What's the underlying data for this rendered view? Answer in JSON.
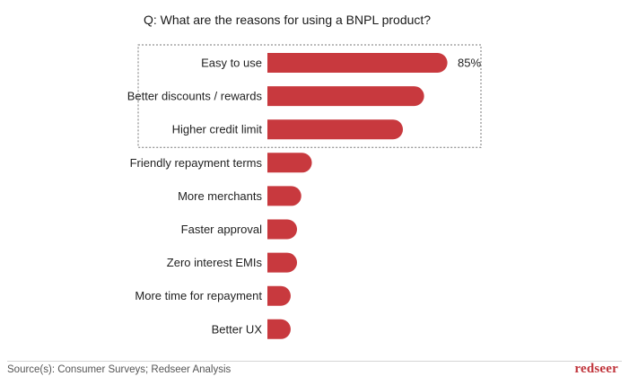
{
  "header": {
    "question": "Q: What are the reasons for using a BNPL product?"
  },
  "chart_data": {
    "type": "bar",
    "orientation": "horizontal",
    "title": "Q: What are the reasons for using a BNPL product?",
    "categories": [
      "Easy to use",
      "Better discounts / rewards",
      "Higher credit limit",
      "Friendly repayment terms",
      "More merchants",
      "Faster approval",
      "Zero interest EMIs",
      "More time for repayment",
      "Better UX"
    ],
    "values": [
      85,
      74,
      64,
      21,
      16,
      14,
      14,
      11,
      11
    ],
    "data_labels": [
      "85%",
      "",
      "",
      "",
      "",
      "",
      "",
      "",
      ""
    ],
    "xlim": [
      0,
      100
    ],
    "highlighted_categories": [
      "Easy to use",
      "Better discounts / rewards",
      "Higher credit limit"
    ],
    "grid": false,
    "legend": "none",
    "bar_color": "#c8393e",
    "highlight_border_color": "#777777"
  },
  "footer": {
    "source": "Source(s): Consumer Surveys; Redseer Analysis",
    "brand": "redseer",
    "brand_color": "#c0343b"
  }
}
